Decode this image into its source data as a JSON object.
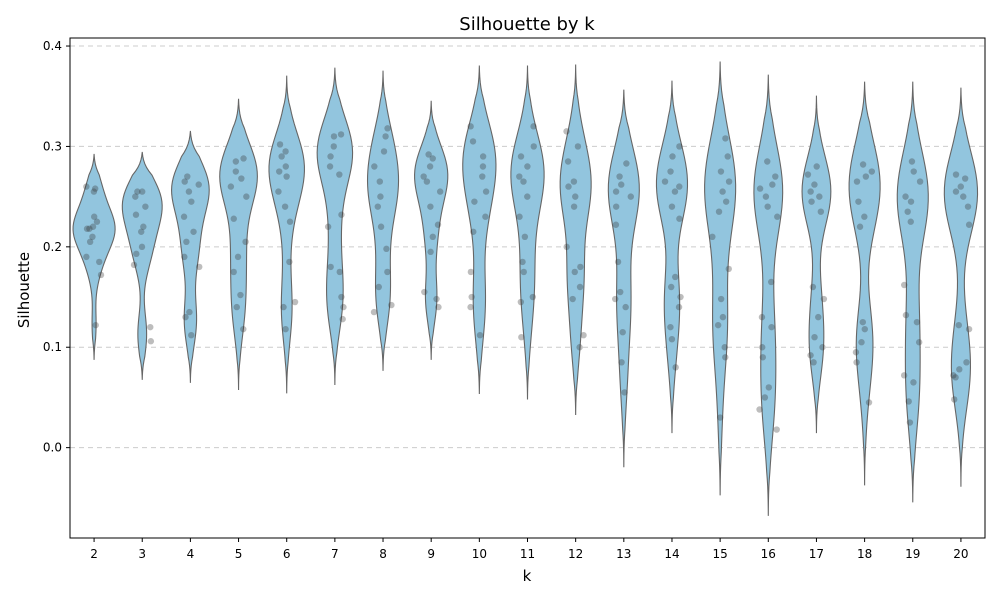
{
  "chart_data": {
    "type": "violin",
    "title": "Silhouette by k",
    "xlabel": "k",
    "ylabel": "Silhouette",
    "ylim": [
      -0.09,
      0.408
    ],
    "yticks": [
      0.0,
      0.1,
      0.2,
      0.3,
      0.4
    ],
    "ytick_labels": [
      "0.0",
      "0.1",
      "0.2",
      "0.3",
      "0.4"
    ],
    "grid": "horizontal dashed",
    "colors": {
      "violin_fill": "#92c5de",
      "violin_edge": "#666666",
      "points": "#333333",
      "grid": "#cccccc"
    },
    "categories": [
      "2",
      "3",
      "4",
      "5",
      "6",
      "7",
      "8",
      "9",
      "10",
      "11",
      "12",
      "13",
      "14",
      "15",
      "16",
      "17",
      "18",
      "19",
      "20"
    ],
    "violins": [
      {
        "k": "2",
        "min": 0.088,
        "max": 0.292,
        "mode": 0.22,
        "width": 0.95
      },
      {
        "k": "3",
        "min": 0.068,
        "max": 0.294,
        "mode": 0.245,
        "width": 0.9
      },
      {
        "k": "4",
        "min": 0.065,
        "max": 0.315,
        "mode": 0.262,
        "width": 0.85
      },
      {
        "k": "5",
        "min": 0.058,
        "max": 0.347,
        "mode": 0.275,
        "width": 0.85
      },
      {
        "k": "6",
        "min": 0.054,
        "max": 0.37,
        "mode": 0.28,
        "width": 0.8
      },
      {
        "k": "7",
        "min": 0.063,
        "max": 0.378,
        "mode": 0.295,
        "width": 0.8
      },
      {
        "k": "8",
        "min": 0.077,
        "max": 0.375,
        "mode": 0.265,
        "width": 0.7
      },
      {
        "k": "9",
        "min": 0.088,
        "max": 0.345,
        "mode": 0.272,
        "width": 0.75
      },
      {
        "k": "10",
        "min": 0.054,
        "max": 0.38,
        "mode": 0.29,
        "width": 0.75
      },
      {
        "k": "11",
        "min": 0.048,
        "max": 0.38,
        "mode": 0.27,
        "width": 0.75
      },
      {
        "k": "12",
        "min": 0.033,
        "max": 0.381,
        "mode": 0.26,
        "width": 0.7
      },
      {
        "k": "13",
        "min": -0.019,
        "max": 0.356,
        "mode": 0.265,
        "width": 0.7
      },
      {
        "k": "14",
        "min": 0.015,
        "max": 0.365,
        "mode": 0.262,
        "width": 0.7
      },
      {
        "k": "15",
        "min": -0.047,
        "max": 0.384,
        "mode": 0.26,
        "width": 0.7
      },
      {
        "k": "16",
        "min": -0.068,
        "max": 0.371,
        "mode": 0.255,
        "width": 0.65
      },
      {
        "k": "17",
        "min": 0.015,
        "max": 0.35,
        "mode": 0.252,
        "width": 0.65
      },
      {
        "k": "18",
        "min": -0.037,
        "max": 0.364,
        "mode": 0.265,
        "width": 0.7
      },
      {
        "k": "19",
        "min": -0.054,
        "max": 0.364,
        "mode": 0.245,
        "width": 0.7
      },
      {
        "k": "20",
        "min": -0.039,
        "max": 0.358,
        "mode": 0.255,
        "width": 0.75
      }
    ],
    "points": [
      [
        0.255,
        0.258,
        0.218,
        0.218,
        0.22,
        0.23,
        0.19,
        0.172,
        0.122,
        0.21,
        0.205,
        0.185,
        0.225,
        0.26
      ],
      [
        0.255,
        0.255,
        0.24,
        0.232,
        0.22,
        0.2,
        0.193,
        0.182,
        0.12,
        0.106,
        0.25,
        0.215
      ],
      [
        0.262,
        0.265,
        0.255,
        0.245,
        0.215,
        0.205,
        0.19,
        0.18,
        0.135,
        0.13,
        0.112,
        0.27,
        0.23
      ],
      [
        0.288,
        0.285,
        0.275,
        0.26,
        0.25,
        0.228,
        0.205,
        0.19,
        0.175,
        0.152,
        0.14,
        0.118,
        0.268
      ],
      [
        0.302,
        0.29,
        0.28,
        0.275,
        0.255,
        0.24,
        0.225,
        0.185,
        0.145,
        0.14,
        0.118,
        0.27,
        0.295
      ],
      [
        0.312,
        0.31,
        0.3,
        0.29,
        0.28,
        0.272,
        0.22,
        0.18,
        0.175,
        0.15,
        0.14,
        0.128,
        0.232
      ],
      [
        0.318,
        0.31,
        0.295,
        0.28,
        0.265,
        0.25,
        0.24,
        0.22,
        0.198,
        0.175,
        0.16,
        0.142,
        0.135
      ],
      [
        0.292,
        0.288,
        0.28,
        0.27,
        0.255,
        0.24,
        0.222,
        0.21,
        0.195,
        0.155,
        0.148,
        0.14,
        0.265
      ],
      [
        0.32,
        0.305,
        0.29,
        0.28,
        0.27,
        0.255,
        0.245,
        0.23,
        0.215,
        0.175,
        0.15,
        0.14,
        0.112
      ],
      [
        0.32,
        0.3,
        0.29,
        0.28,
        0.27,
        0.265,
        0.25,
        0.23,
        0.21,
        0.185,
        0.175,
        0.15,
        0.145,
        0.11
      ],
      [
        0.315,
        0.3,
        0.285,
        0.265,
        0.26,
        0.25,
        0.24,
        0.2,
        0.18,
        0.175,
        0.16,
        0.148,
        0.112,
        0.1
      ],
      [
        0.283,
        0.27,
        0.262,
        0.255,
        0.25,
        0.24,
        0.222,
        0.185,
        0.155,
        0.148,
        0.14,
        0.115,
        0.085,
        0.055
      ],
      [
        0.3,
        0.29,
        0.275,
        0.265,
        0.26,
        0.255,
        0.24,
        0.228,
        0.17,
        0.16,
        0.15,
        0.14,
        0.12,
        0.108,
        0.08
      ],
      [
        0.308,
        0.29,
        0.275,
        0.265,
        0.255,
        0.245,
        0.235,
        0.21,
        0.178,
        0.148,
        0.13,
        0.122,
        0.1,
        0.09,
        0.03
      ],
      [
        0.285,
        0.27,
        0.262,
        0.258,
        0.25,
        0.24,
        0.23,
        0.165,
        0.13,
        0.12,
        0.1,
        0.09,
        0.06,
        0.05,
        0.038,
        0.018
      ],
      [
        0.28,
        0.272,
        0.262,
        0.255,
        0.25,
        0.245,
        0.235,
        0.16,
        0.148,
        0.13,
        0.11,
        0.1,
        0.092,
        0.085
      ],
      [
        0.282,
        0.275,
        0.27,
        0.265,
        0.245,
        0.23,
        0.22,
        0.125,
        0.118,
        0.105,
        0.095,
        0.085,
        0.045
      ],
      [
        0.285,
        0.275,
        0.265,
        0.25,
        0.245,
        0.235,
        0.225,
        0.162,
        0.132,
        0.125,
        0.105,
        0.072,
        0.065,
        0.046,
        0.025
      ],
      [
        0.272,
        0.268,
        0.26,
        0.255,
        0.25,
        0.24,
        0.222,
        0.122,
        0.118,
        0.085,
        0.078,
        0.072,
        0.07,
        0.048
      ]
    ]
  }
}
